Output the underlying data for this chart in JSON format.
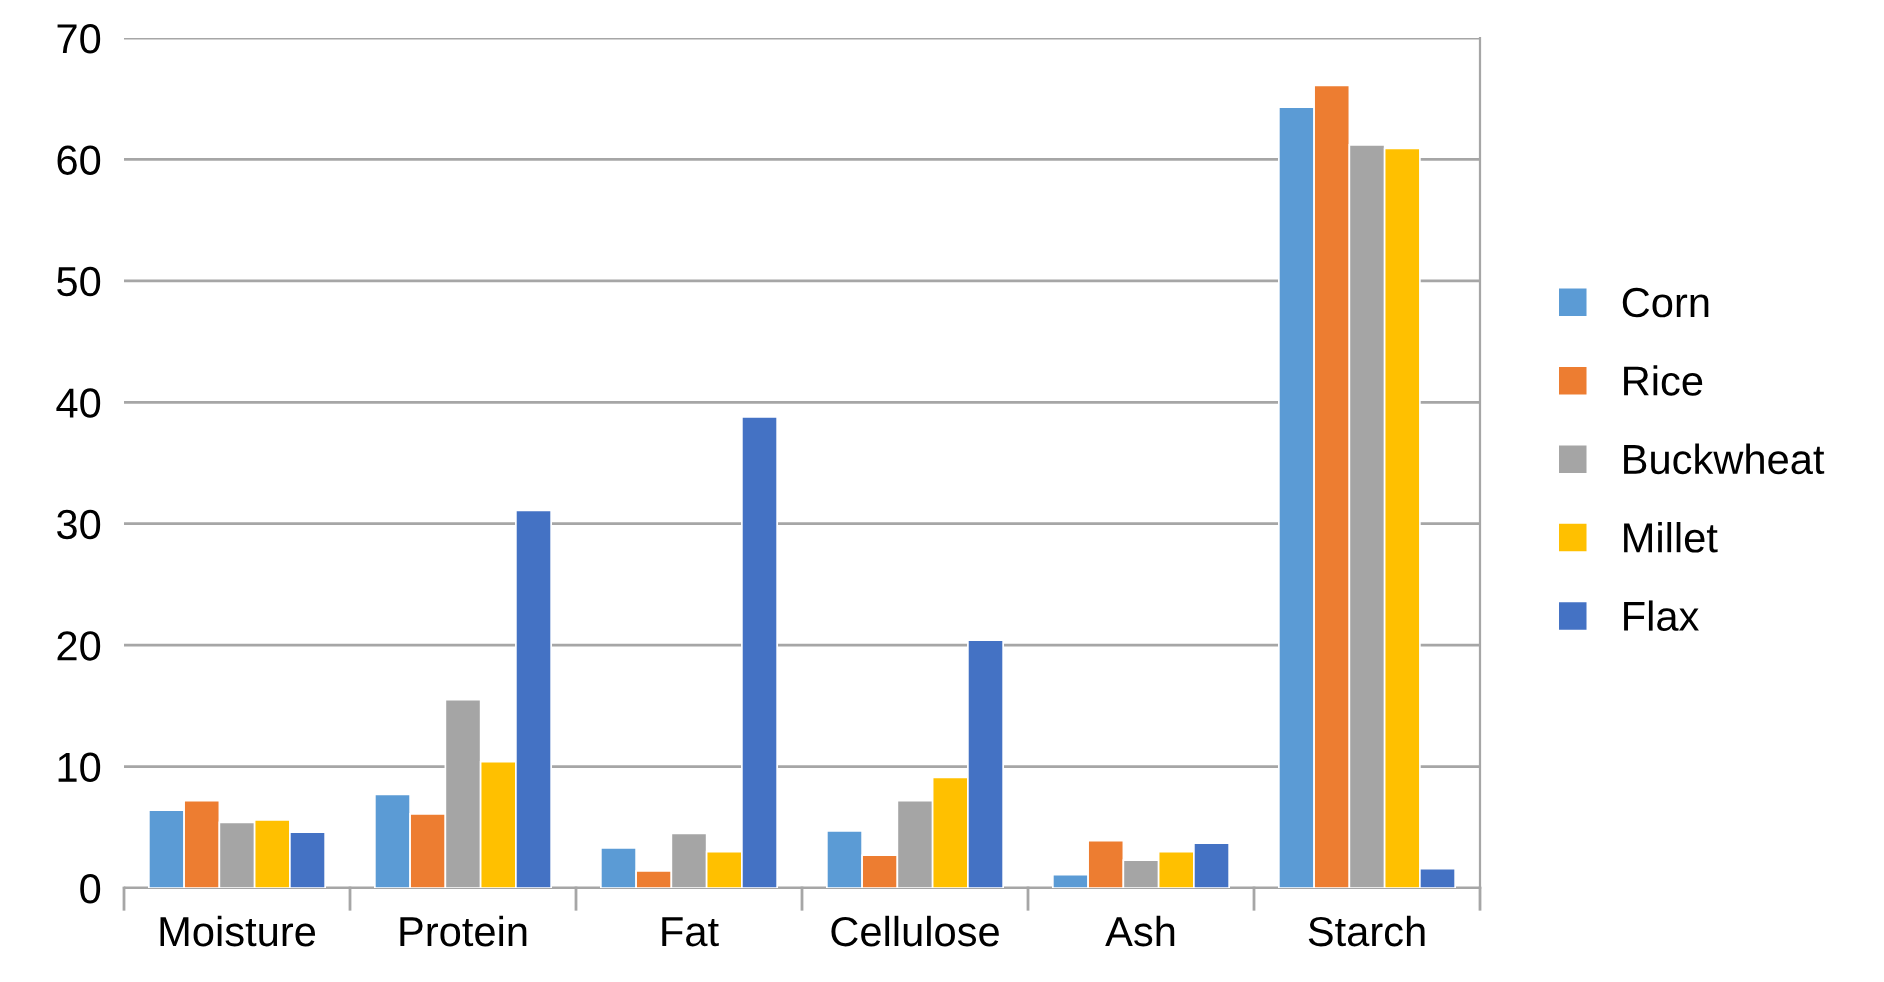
{
  "chart_data": {
    "type": "bar",
    "categories": [
      "Moisture",
      "Protein",
      "Fat",
      "Cellulose",
      "Ash",
      "Starch"
    ],
    "series": [
      {
        "name": "Corn",
        "color": "#5b9bd5",
        "values": [
          6.4,
          7.7,
          3.3,
          4.7,
          1.1,
          64.3
        ]
      },
      {
        "name": "Rice",
        "color": "#ed7d31",
        "values": [
          7.2,
          6.1,
          1.4,
          2.7,
          3.9,
          66.1
        ]
      },
      {
        "name": "Buckwheat",
        "color": "#a5a5a5",
        "values": [
          5.4,
          15.5,
          4.5,
          7.2,
          2.3,
          61.2
        ]
      },
      {
        "name": "Millet",
        "color": "#ffc000",
        "values": [
          5.6,
          10.4,
          3.0,
          9.1,
          3.0,
          60.9
        ]
      },
      {
        "name": "Flax",
        "color": "#4472c4",
        "values": [
          4.6,
          31.1,
          38.8,
          20.4,
          3.7,
          1.6
        ]
      }
    ],
    "ylim": [
      0,
      70
    ],
    "yticks": [
      0,
      10,
      20,
      30,
      40,
      50,
      60,
      70
    ],
    "grid": "y",
    "legend": "right"
  }
}
